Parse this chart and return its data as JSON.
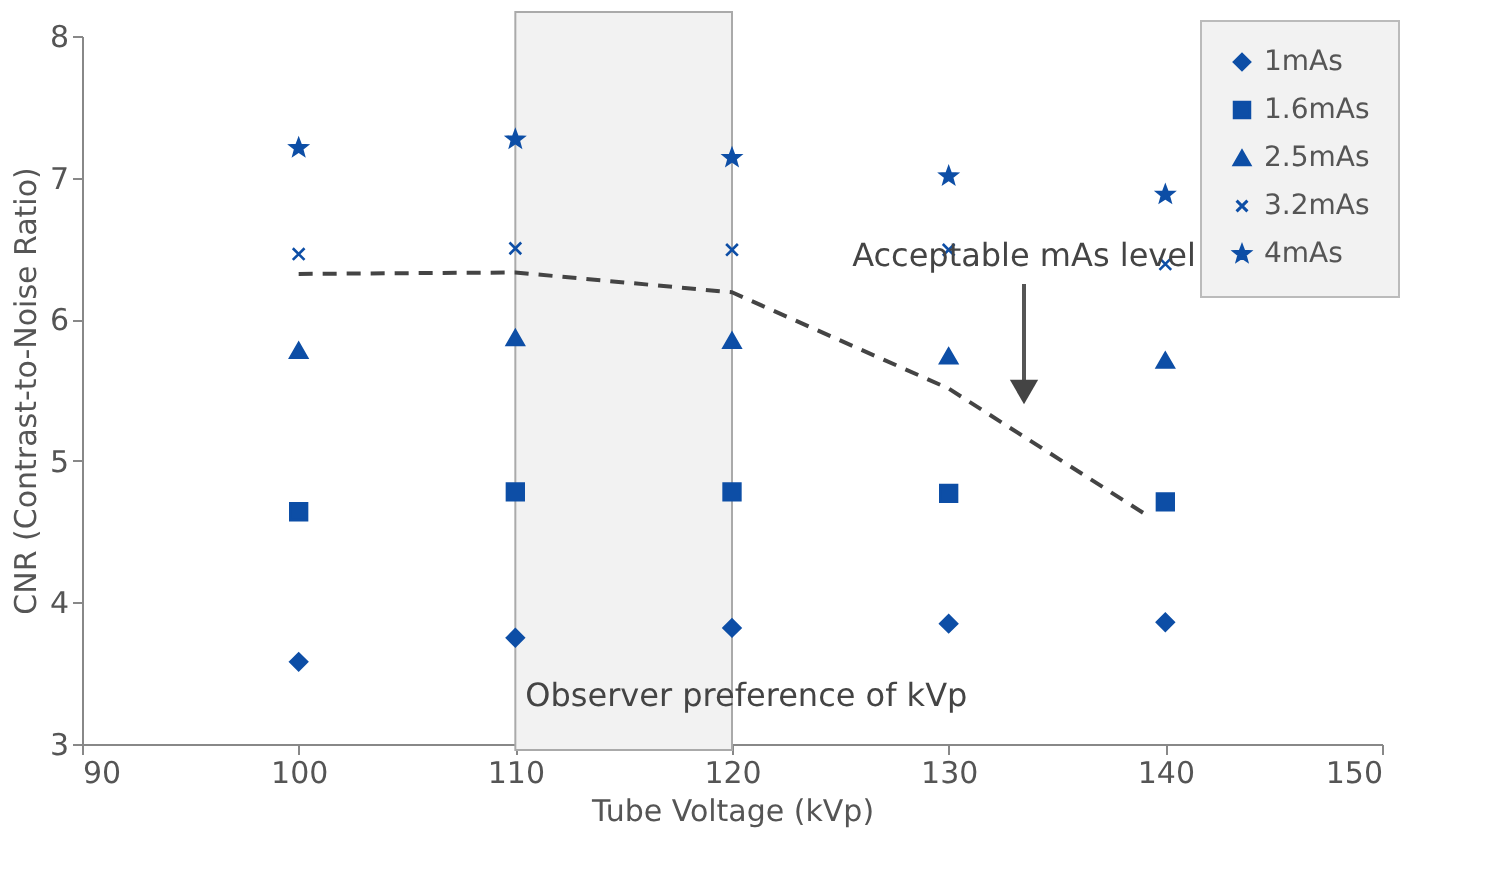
{
  "chart_data": {
    "type": "scatter",
    "xlabel": "Tube Voltage (kVp)",
    "ylabel": "CNR (Contrast-to-Noise Ratio)",
    "x": [
      100,
      110,
      120,
      130,
      140
    ],
    "series": [
      {
        "name": "1mAs",
        "color": "#0d4ea6",
        "marker": "diamond",
        "values": [
          3.58,
          3.75,
          3.82,
          3.85,
          3.86
        ]
      },
      {
        "name": "1.6mAs",
        "color": "#0d4ea6",
        "marker": "square",
        "values": [
          4.64,
          4.78,
          4.78,
          4.77,
          4.71
        ]
      },
      {
        "name": "2.5mAs",
        "color": "#0d4ea6",
        "marker": "triangle",
        "values": [
          5.78,
          5.87,
          5.85,
          5.74,
          5.71
        ]
      },
      {
        "name": "3.2mAs",
        "color": "#0d4ea6",
        "marker": "cross",
        "values": [
          6.46,
          6.5,
          6.49,
          6.49,
          6.39
        ]
      },
      {
        "name": "4mAs",
        "color": "#0d4ea6",
        "marker": "star",
        "values": [
          7.21,
          7.27,
          7.14,
          7.01,
          6.88
        ]
      },
      {
        "type": "line",
        "color": "#444444",
        "line_style": "dashed",
        "marker": "none",
        "x": [
          100,
          110,
          120,
          130,
          139
        ],
        "values": [
          6.32,
          6.33,
          6.19,
          5.51,
          4.63
        ]
      }
    ],
    "xlim": [
      90,
      150
    ],
    "xticks": [
      90,
      100,
      110,
      120,
      130,
      140,
      150
    ],
    "ylim": [
      3,
      8
    ],
    "yticks": [
      3,
      4,
      5,
      6,
      7,
      8
    ],
    "bands": [
      {
        "axis": "x",
        "from": 110,
        "to": 120,
        "label": "Observer preference of kVp",
        "color": "#f2f2f2"
      }
    ],
    "annotations": [
      "Acceptable mAs level"
    ],
    "grid": false,
    "legend": "top right"
  }
}
